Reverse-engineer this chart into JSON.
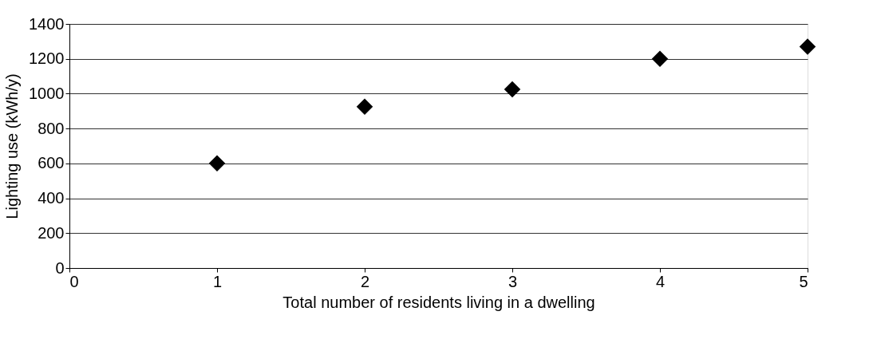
{
  "chart_data": {
    "type": "scatter",
    "xlabel": "Total number of residents living in a dwelling",
    "ylabel": "Lighting use (kWh/y)",
    "x": [
      1,
      2,
      3,
      4,
      5
    ],
    "series": [
      {
        "color": "#000000",
        "values": [
          600,
          925,
          1025,
          1200,
          1270
        ]
      }
    ],
    "xlim": [
      0,
      5
    ],
    "xticks": [
      0,
      1,
      2,
      3,
      4,
      5
    ],
    "ylim": [
      0,
      1400
    ],
    "yticks": [
      0,
      200,
      400,
      600,
      800,
      1000,
      1200,
      1400
    ],
    "grid": "y",
    "marker": "diamond",
    "legend": false
  }
}
